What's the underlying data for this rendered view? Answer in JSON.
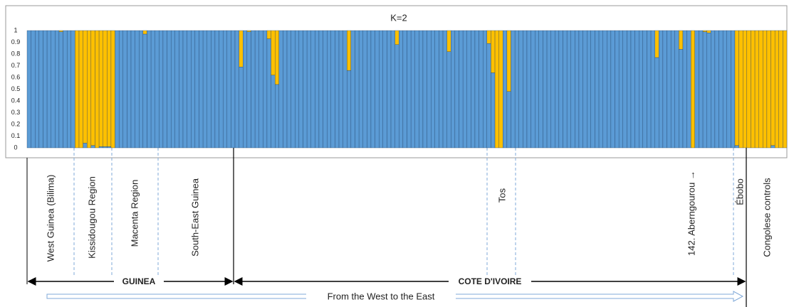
{
  "chart_data": {
    "type": "bar",
    "stacked": true,
    "title": "K=2",
    "ylim": [
      0,
      1
    ],
    "yticks": [
      0,
      0.1,
      0.2,
      0.3,
      0.4,
      0.5,
      0.6,
      0.7,
      0.8,
      0.9,
      1
    ],
    "series": [
      {
        "color": "#5b9bd5",
        "values": [
          1,
          1,
          1,
          1,
          1,
          1,
          1,
          1,
          0.99,
          1,
          1,
          1,
          0,
          0,
          0.04,
          0,
          0.02,
          0,
          0.01,
          0.01,
          0.01,
          0,
          1,
          1,
          1,
          1,
          1,
          1,
          1,
          0.97,
          1,
          1,
          1,
          1,
          1,
          1,
          1,
          1,
          1,
          1,
          1,
          1,
          1,
          1,
          1,
          1,
          1,
          1,
          1,
          1,
          1,
          1,
          1,
          0.69,
          1,
          0.99,
          1,
          1,
          1,
          1,
          0.93,
          0.62,
          0.54,
          1,
          1,
          1,
          1,
          1,
          1,
          1,
          1,
          1,
          1,
          1,
          1,
          1,
          1,
          1,
          1,
          1,
          0.66,
          1,
          1,
          1,
          1,
          1,
          1,
          1,
          1,
          1,
          1,
          1,
          0.88,
          1,
          1,
          1,
          1,
          1,
          1,
          1,
          1,
          1,
          1,
          1,
          1,
          0.82,
          1,
          1,
          1,
          1,
          1,
          1,
          1,
          1,
          1,
          0.89,
          0.64,
          0,
          0,
          1,
          0.48,
          1,
          1,
          1,
          1,
          1,
          1,
          1,
          1,
          1,
          1,
          1,
          1,
          1,
          1,
          1,
          1,
          1,
          1,
          1,
          1,
          1,
          1,
          1,
          1,
          1,
          1,
          1,
          1,
          1,
          1,
          1,
          1,
          1,
          1,
          1,
          1,
          0.77,
          1,
          1,
          1,
          1,
          1,
          0.84,
          1,
          1,
          0,
          1,
          1,
          0.99,
          0.98,
          1,
          1,
          1,
          1,
          1,
          1,
          0.02,
          0,
          0,
          0,
          0,
          0,
          0,
          0,
          0,
          0.02,
          0,
          0,
          0
        ]
      },
      {
        "color": "#ffc000",
        "values": [
          0,
          0,
          0,
          0,
          0,
          0,
          0,
          0,
          0.01,
          0,
          0,
          0,
          1,
          1,
          0.96,
          1,
          0.98,
          1,
          0.99,
          0.99,
          0.99,
          1,
          0,
          0,
          0,
          0,
          0,
          0,
          0,
          0.03,
          0,
          0,
          0,
          0,
          0,
          0,
          0,
          0,
          0,
          0,
          0,
          0,
          0,
          0,
          0,
          0,
          0,
          0,
          0,
          0,
          0,
          0,
          0,
          0.31,
          0,
          0.01,
          0,
          0,
          0,
          0,
          0.07,
          0.38,
          0.46,
          0,
          0,
          0,
          0,
          0,
          0,
          0,
          0,
          0,
          0,
          0,
          0,
          0,
          0,
          0,
          0,
          0,
          0.34,
          0,
          0,
          0,
          0,
          0,
          0,
          0,
          0,
          0,
          0,
          0,
          0.12,
          0,
          0,
          0,
          0,
          0,
          0,
          0,
          0,
          0,
          0,
          0,
          0,
          0.18,
          0,
          0,
          0,
          0,
          0,
          0,
          0,
          0,
          0,
          0.11,
          0.36,
          1,
          1,
          0,
          0.52,
          0,
          0,
          0,
          0,
          0,
          0,
          0,
          0,
          0,
          0,
          0,
          0,
          0,
          0,
          0,
          0,
          0,
          0,
          0,
          0,
          0,
          0,
          0,
          0,
          0,
          0,
          0,
          0,
          0,
          0,
          0,
          0,
          0,
          0,
          0,
          0,
          0.23,
          0,
          0,
          0,
          0,
          0,
          0.16,
          0,
          0,
          1,
          0,
          0,
          0.01,
          0.02,
          0,
          0,
          0,
          0,
          0,
          0,
          0.98,
          1,
          1,
          1,
          1,
          1,
          1,
          1,
          1,
          0.98,
          1,
          1,
          1
        ]
      }
    ],
    "region_labels": [
      "West Guinea (Bilima)",
      "Kissidougou Region",
      "Macenta Region",
      "South-East Guinea",
      "Tos",
      "142. Aberngourou →",
      "Ébobo",
      "Congolese controls"
    ],
    "country_labels": [
      "GUINEA",
      "COTE D'IVOIRE"
    ],
    "direction_label": "From the West to the East"
  }
}
